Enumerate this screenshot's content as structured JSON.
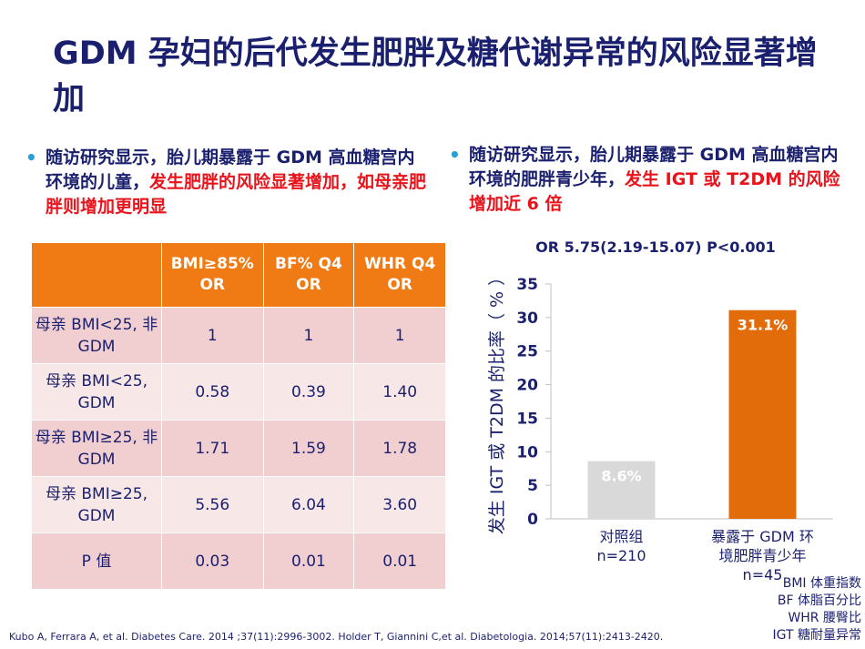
{
  "title": "GDM 孕妇的后代发生肥胖及糖代谢异常的风险显著增加",
  "bullet_left": {
    "text_a": "随访研究显示，胎儿期暴露于 GDM 高血糖宫内环境的儿童，",
    "text_b": "发生肥胖的风险显著增加，如母亲肥胖则增加更明显"
  },
  "bullet_right": {
    "text_a": "随访研究显示，胎儿期暴露于 GDM 高血糖宫内环境的肥胖青少年，",
    "text_b": "发生 IGT 或 T2DM 的风险增加近 6 倍"
  },
  "table": {
    "headers": [
      "",
      "BMI≥85% OR",
      "BF% Q4 OR",
      "WHR Q4 OR"
    ],
    "rows": [
      {
        "label": "母亲 BMI<25, 非 GDM",
        "values": [
          "1",
          "1",
          "1"
        ]
      },
      {
        "label": "母亲 BMI<25, GDM",
        "values": [
          "0.58",
          "0.39",
          "1.40"
        ]
      },
      {
        "label": "母亲 BMI≥25, 非 GDM",
        "values": [
          "1.71",
          "1.59",
          "1.78"
        ]
      },
      {
        "label": "母亲 BMI≥25, GDM",
        "values": [
          "5.56",
          "6.04",
          "3.60"
        ]
      },
      {
        "label": "P 值",
        "values": [
          "0.03",
          "0.01",
          "0.01"
        ]
      }
    ]
  },
  "chart_data": {
    "type": "bar",
    "title": "OR 5.75(2.19-15.07) P<0.001",
    "ylabel": "发生 IGT 或 T2DM 的比率（ % ）",
    "ylim": [
      0,
      35
    ],
    "yticks": [
      0,
      5,
      10,
      15,
      20,
      25,
      30,
      35
    ],
    "categories": [
      [
        "对照组",
        "n=210"
      ],
      [
        "暴露于 GDM 环",
        "境肥胖青少年",
        "n=45"
      ]
    ],
    "values": [
      8.6,
      31.1
    ],
    "data_labels": [
      "8.6%",
      "31.1%"
    ],
    "colors": [
      "#d9d9d9",
      "#e36c0a"
    ],
    "grid": false
  },
  "abbreviations": [
    "BMI  体重指数",
    "BF  体脂百分比",
    "WHR  腰臀比",
    "IGT  糖耐量异常"
  ],
  "references": "Kubo A, Ferrara A,  et al. Diabetes Care. 2014 ;37(11):2996-3002. Holder T, Giannini C,et al. Diabetologia. 2014;57(11):2413-2420."
}
